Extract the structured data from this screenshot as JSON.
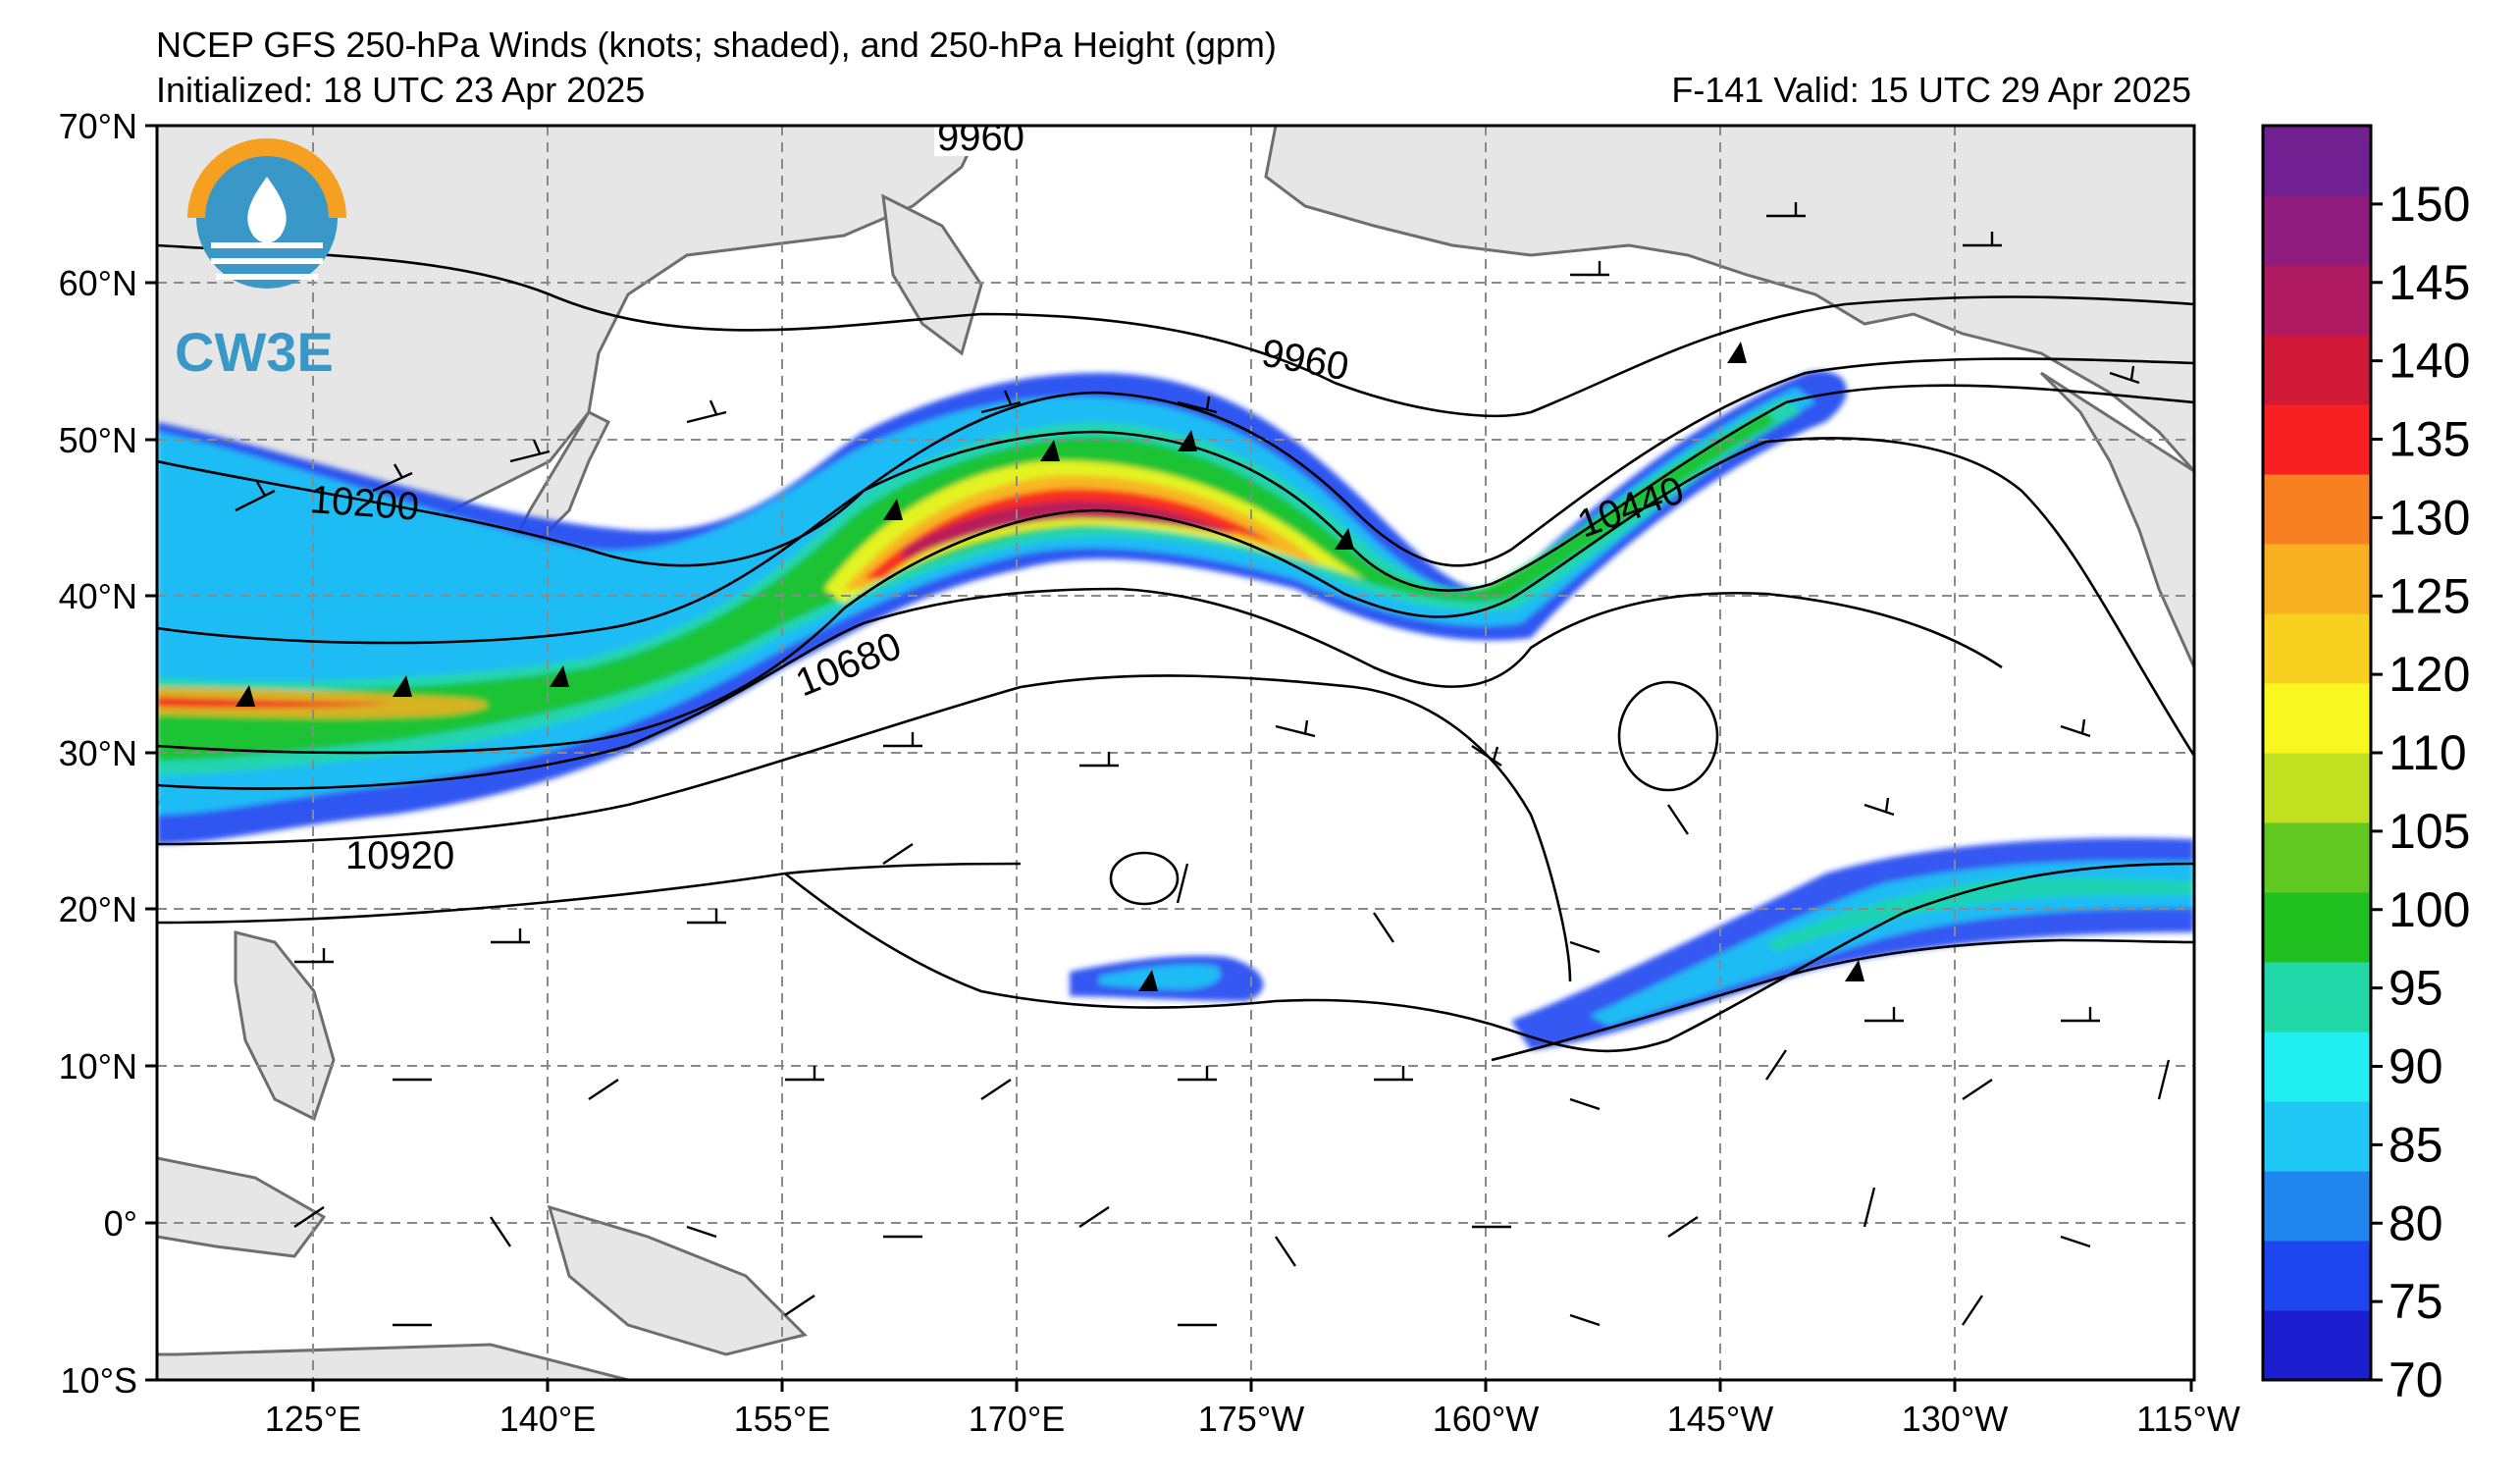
{
  "header": {
    "title": "NCEP GFS 250-hPa Winds (knots; shaded), and 250-hPa Height (gpm)",
    "initialized": "Initialized: 18 UTC 23 Apr 2025",
    "valid": "F-141  Valid: 15 UTC 29 Apr 2025"
  },
  "logo": {
    "text": "CW3E"
  },
  "map": {
    "lat_labels": [
      "70°N",
      "60°N",
      "50°N",
      "40°N",
      "30°N",
      "20°N",
      "10°N",
      "0°",
      "10°S"
    ],
    "lon_labels": [
      "125°E",
      "140°E",
      "155°E",
      "170°E",
      "175°W",
      "160°W",
      "145°W",
      "130°W",
      "115°W"
    ],
    "contour_labels": [
      "9960",
      "9960",
      "10200",
      "10440",
      "10680",
      "10920"
    ]
  },
  "colorbar": {
    "ticks": [
      "70",
      "75",
      "80",
      "85",
      "90",
      "95",
      "100",
      "105",
      "110",
      "120",
      "125",
      "130",
      "135",
      "140",
      "145",
      "150"
    ],
    "colors": [
      "#1b1fcf",
      "#1d46f0",
      "#1f86f0",
      "#1fc8f5",
      "#20eef0",
      "#20d8a8",
      "#20c020",
      "#60c820",
      "#c0e020",
      "#f8f820",
      "#f8d020",
      "#f8b020",
      "#f88020",
      "#f82020",
      "#d01838",
      "#b01a60",
      "#901c80",
      "#702090"
    ]
  }
}
